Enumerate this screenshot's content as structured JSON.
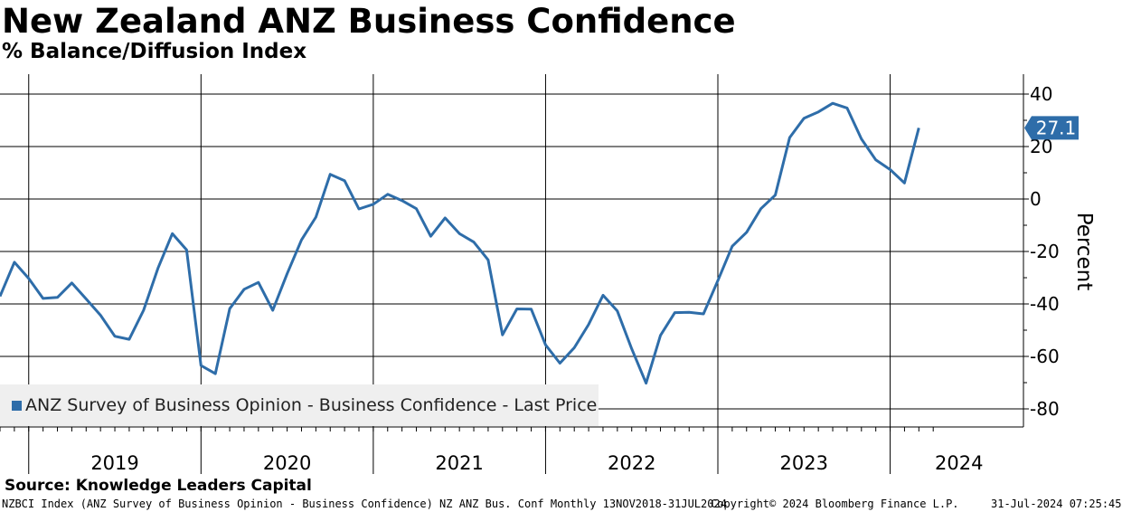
{
  "header": {
    "title": "New Zealand ANZ Business Confidence",
    "subtitle": "% Balance/Diffusion Index"
  },
  "legend": {
    "label": "ANZ Survey of Business Opinion - Business Confidence - Last Price"
  },
  "source": "Source: Knowledge Leaders Capital",
  "footer": {
    "ticker": "NZBCI Index (ANZ Survey of Business Opinion - Business Confidence) NZ ANZ Bus. Conf  Monthly 13NOV2018-31JUL2024",
    "copyright": "Copyright© 2024 Bloomberg Finance L.P.",
    "timestamp": "31-Jul-2024 07:25:45"
  },
  "colors": {
    "line": "#2e6da9",
    "badge": "#2e6da9",
    "legend_bg": "#efefef"
  },
  "chart_data": {
    "type": "line",
    "title": "New Zealand ANZ Business Confidence",
    "subtitle": "% Balance/Diffusion Index",
    "ylabel": "Percent",
    "xlabel": "",
    "ylim": [
      -88,
      48
    ],
    "yticks": [
      40,
      20,
      0,
      -20,
      -40,
      -60,
      -80
    ],
    "year_labels": [
      "2019",
      "2020",
      "2021",
      "2022",
      "2023",
      "2024"
    ],
    "last_value_label": "27.1",
    "legend_position": "bottom-left",
    "grid": true,
    "series": [
      {
        "name": "ANZ Survey of Business Opinion - Business Confidence - Last Price",
        "start": "2018-11",
        "values": [
          -37.1,
          -24.1,
          -30.3,
          -37.9,
          -37.5,
          -32.0,
          -38.1,
          -44.3,
          -52.3,
          -53.5,
          -42.4,
          -26.4,
          -13.2,
          -19.4,
          -63.5,
          -66.6,
          -41.8,
          -34.4,
          -31.8,
          -42.4,
          -28.5,
          -15.6,
          -6.9,
          9.4,
          7.0,
          -3.8,
          -2.0,
          1.8,
          -0.6,
          -3.7,
          -14.2,
          -7.2,
          -13.2,
          -16.4,
          -23.2,
          -51.8,
          -41.9,
          -42.0,
          -55.6,
          -62.6,
          -56.7,
          -47.8,
          -36.7,
          -42.7,
          -57.1,
          -70.2,
          -52.0,
          -43.3,
          -43.2,
          -43.8,
          -31.1,
          -18.0,
          -12.7,
          -3.7,
          1.5,
          23.4,
          30.8,
          33.2,
          36.5,
          34.7,
          22.9,
          14.9,
          11.2,
          6.1,
          27.1
        ]
      }
    ]
  }
}
